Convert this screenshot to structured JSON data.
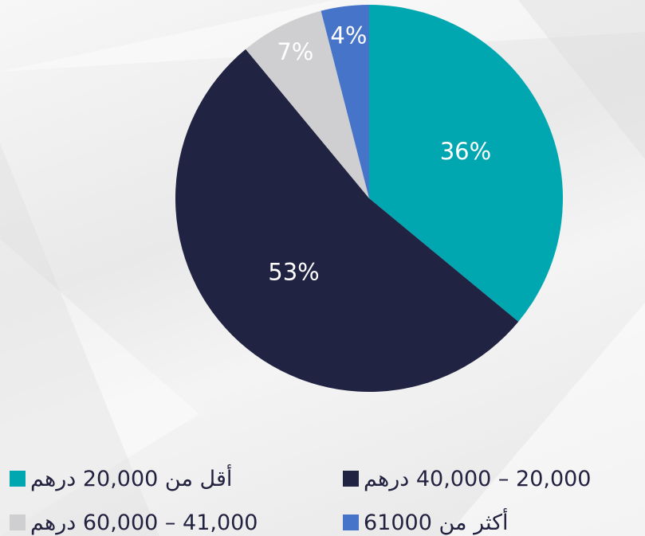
{
  "chart_data": {
    "type": "pie",
    "categories": [
      "أقل من 20,000 درهم",
      "20,000 – 40,000 درهم",
      "41,000 – 60,000 درهم",
      "أكثر من 61000"
    ],
    "values": [
      36,
      53,
      7,
      4
    ],
    "value_labels": [
      "36%",
      "53%",
      "7%",
      "4%"
    ],
    "colors": [
      "#00a7b1",
      "#212342",
      "#cfcfd1",
      "#4674c8"
    ]
  }
}
